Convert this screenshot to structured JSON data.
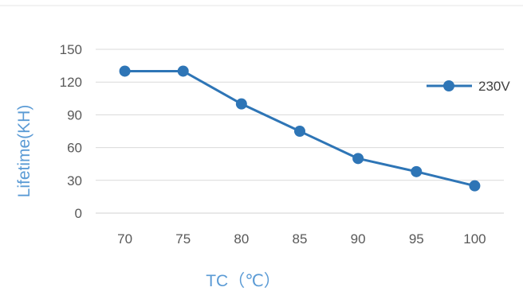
{
  "chart_data": {
    "type": "line",
    "title": "",
    "xlabel": "TC（℃）",
    "ylabel": "Lifetime(KH)",
    "categories": [
      "70",
      "75",
      "80",
      "85",
      "90",
      "95",
      "100"
    ],
    "ylim": [
      0,
      150
    ],
    "yticks": [
      0,
      30,
      60,
      90,
      120,
      150
    ],
    "grid": true,
    "legend_position": "right",
    "series": [
      {
        "name": "230V",
        "values": [
          130,
          130,
          100,
          75,
          50,
          38,
          25
        ],
        "color": "#2e75b6"
      }
    ],
    "axis_title_color": "#5b9bd5"
  }
}
